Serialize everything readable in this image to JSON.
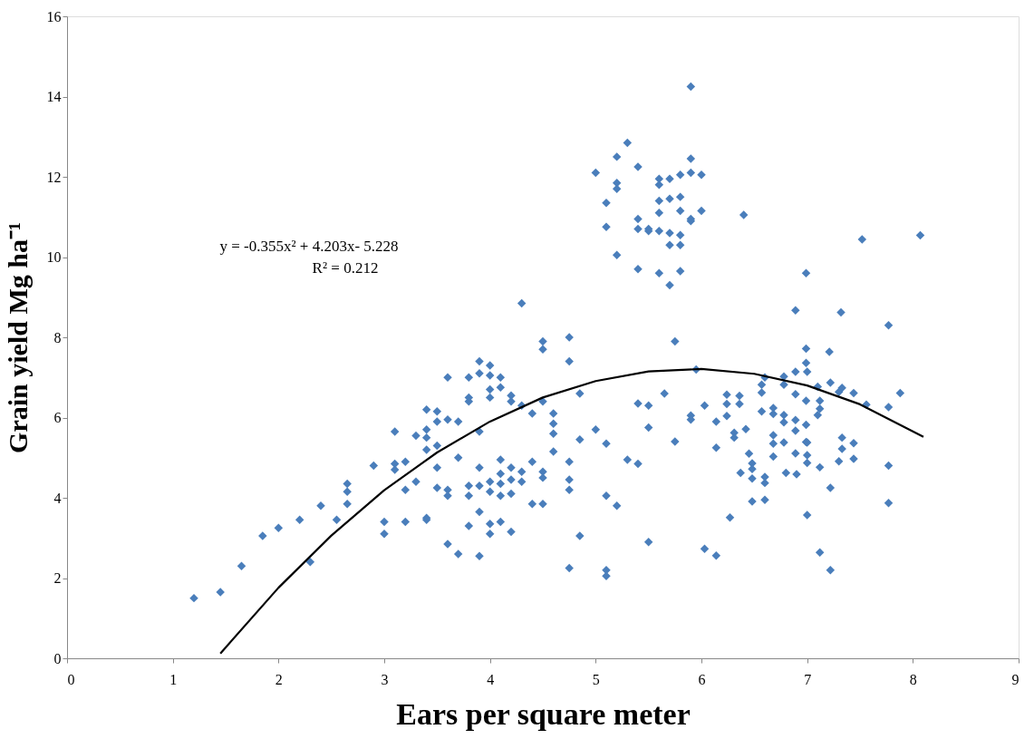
{
  "chart_data": {
    "type": "scatter",
    "xlabel": "Ears per square meter",
    "ylabel": "Grain yield Mg ha⁻¹",
    "annotations": [
      "y = -0.355x² + 4.203x- 5.228",
      "R² = 0.212"
    ],
    "xlim": [
      0,
      9
    ],
    "xticks": [
      0,
      1,
      2,
      3,
      4,
      5,
      6,
      7,
      8,
      9
    ],
    "ylim": [
      0,
      16
    ],
    "yticks": [
      0,
      2,
      4,
      6,
      8,
      10,
      12,
      14,
      16
    ],
    "grid": false,
    "legend": false,
    "series": [
      {
        "marker": "diamond",
        "color": "#4a7ebb",
        "x": [
          1.2,
          1.45,
          1.65,
          1.85,
          2.0,
          2.2,
          2.3,
          2.4,
          2.55,
          2.65,
          2.65,
          2.65,
          2.9,
          3.0,
          3.0,
          3.1,
          3.1,
          3.1,
          3.2,
          3.2,
          3.2,
          3.3,
          3.3,
          3.4,
          3.4,
          3.4,
          3.4,
          3.4,
          3.4,
          3.5,
          3.5,
          3.5,
          3.5,
          3.5,
          3.6,
          3.6,
          3.6,
          3.6,
          3.6,
          3.7,
          3.7,
          3.7,
          3.8,
          3.8,
          3.8,
          3.8,
          3.8,
          3.8,
          3.9,
          3.9,
          3.9,
          3.9,
          3.9,
          3.9,
          3.9,
          4.0,
          4.0,
          4.0,
          4.0,
          4.0,
          4.0,
          4.0,
          4.0,
          4.1,
          4.1,
          4.1,
          4.1,
          4.1,
          4.1,
          4.1,
          4.2,
          4.2,
          4.2,
          4.2,
          4.2,
          4.2,
          4.3,
          4.3,
          4.3,
          4.3,
          4.4,
          4.4,
          4.4,
          4.5,
          4.5,
          4.5,
          4.5,
          4.5,
          4.5,
          4.6,
          4.6,
          4.6,
          4.6,
          4.75,
          4.75,
          4.75,
          4.75,
          4.75,
          4.75,
          4.85,
          4.85,
          4.85,
          5.0,
          5.1,
          5.1,
          5.1,
          5.1,
          5.2,
          5.3,
          5.4,
          5.5,
          5.5,
          5.5,
          5.65,
          5.75,
          5.75,
          5.9,
          5.9,
          5.4,
          5.0,
          5.1,
          5.1,
          5.2,
          5.2,
          5.2,
          5.2,
          5.3,
          5.4,
          5.4,
          5.4,
          5.4,
          5.5,
          5.5,
          5.6,
          5.6,
          5.6,
          5.6,
          5.6,
          5.6,
          5.7,
          5.7,
          5.7,
          5.7,
          5.7,
          5.8,
          5.8,
          5.8,
          5.8,
          5.8,
          5.8,
          5.9,
          5.9,
          5.9,
          5.9,
          5.9,
          6.0,
          6.0,
          5.95,
          6.4,
          7.52,
          8.07,
          6.99,
          6.89,
          7.32,
          7.77,
          6.99,
          7.21,
          6.99,
          7.0,
          6.89,
          6.78,
          6.6,
          6.57,
          6.57,
          6.78,
          6.89,
          6.99,
          7.1,
          7.22,
          7.33,
          7.3,
          7.44,
          7.56,
          7.77,
          7.88,
          7.12,
          7.12,
          7.1,
          6.24,
          6.36,
          6.24,
          6.36,
          6.03,
          6.24,
          6.57,
          6.68,
          6.68,
          6.78,
          6.78,
          6.89,
          6.99,
          6.14,
          6.42,
          6.31,
          6.31,
          6.68,
          6.89,
          6.68,
          6.78,
          6.99,
          7.0,
          7.33,
          7.44,
          6.14,
          6.45,
          6.68,
          6.89,
          7.0,
          7.33,
          6.48,
          6.48,
          7.0,
          7.12,
          7.3,
          7.44,
          7.77,
          6.37,
          6.48,
          6.6,
          6.6,
          6.8,
          6.9,
          7.22,
          6.48,
          6.6,
          7.77,
          6.27,
          7.0,
          6.03,
          6.14,
          7.12,
          7.22
        ],
        "values": [
          1.5,
          1.65,
          2.3,
          3.05,
          3.25,
          3.45,
          2.4,
          3.8,
          3.45,
          3.85,
          4.15,
          4.35,
          4.8,
          3.4,
          3.1,
          5.65,
          4.85,
          4.7,
          4.9,
          4.2,
          3.4,
          4.4,
          5.55,
          6.2,
          5.7,
          5.5,
          5.2,
          3.5,
          3.45,
          6.15,
          5.9,
          5.3,
          4.25,
          4.75,
          7.0,
          5.95,
          4.05,
          4.2,
          2.85,
          5.9,
          5.0,
          2.6,
          7.0,
          6.5,
          6.4,
          4.3,
          4.05,
          3.3,
          7.4,
          7.1,
          5.65,
          4.75,
          4.3,
          3.65,
          2.55,
          7.3,
          7.05,
          6.7,
          6.5,
          4.4,
          4.15,
          3.35,
          3.1,
          7.0,
          6.75,
          4.95,
          4.6,
          4.35,
          4.05,
          3.4,
          6.55,
          6.4,
          4.75,
          4.45,
          4.1,
          3.15,
          8.85,
          6.3,
          4.65,
          4.4,
          6.1,
          4.9,
          3.85,
          7.9,
          7.7,
          6.4,
          4.65,
          4.5,
          3.85,
          6.1,
          5.85,
          5.6,
          5.15,
          8.0,
          7.4,
          4.9,
          4.45,
          4.2,
          2.25,
          6.6,
          5.45,
          3.05,
          5.7,
          5.35,
          4.05,
          2.2,
          2.05,
          3.8,
          4.95,
          6.35,
          6.3,
          5.75,
          2.9,
          6.6,
          7.9,
          5.4,
          6.05,
          5.95,
          4.85,
          12.1,
          11.35,
          10.75,
          12.5,
          11.85,
          11.7,
          10.05,
          12.85,
          12.25,
          10.95,
          10.7,
          9.7,
          10.65,
          10.7,
          11.95,
          11.8,
          11.4,
          11.1,
          10.65,
          9.6,
          11.95,
          11.45,
          10.6,
          10.3,
          9.3,
          12.05,
          11.5,
          11.15,
          10.55,
          10.3,
          9.65,
          12.1,
          10.9,
          10.95,
          12.45,
          14.25,
          12.05,
          11.15,
          7.2,
          11.05,
          10.44,
          10.54,
          9.6,
          8.67,
          8.62,
          8.3,
          7.72,
          7.64,
          7.36,
          7.14,
          7.14,
          7.02,
          7.0,
          6.82,
          6.62,
          6.82,
          6.58,
          6.42,
          6.77,
          6.87,
          6.74,
          6.64,
          6.61,
          6.32,
          6.26,
          6.61,
          6.42,
          6.22,
          6.06,
          6.57,
          6.54,
          6.34,
          6.34,
          6.3,
          6.04,
          6.15,
          6.24,
          6.09,
          6.06,
          5.88,
          5.94,
          5.82,
          5.9,
          5.71,
          5.62,
          5.5,
          5.56,
          5.67,
          5.35,
          5.38,
          5.39,
          5.38,
          5.5,
          5.36,
          5.25,
          5.1,
          5.03,
          5.11,
          5.06,
          5.22,
          4.86,
          4.72,
          4.87,
          4.76,
          4.91,
          4.97,
          4.8,
          4.62,
          4.48,
          4.52,
          4.37,
          4.62,
          4.59,
          4.25,
          3.91,
          3.95,
          3.87,
          3.51,
          3.57,
          2.73,
          2.56,
          2.64,
          2.2
        ]
      },
      {
        "type": "line",
        "marker": "none",
        "line_style": "solid",
        "color": "#000000",
        "x": [
          1.45,
          2.0,
          2.5,
          3.0,
          3.5,
          4.0,
          4.5,
          5.0,
          5.5,
          6.0,
          6.5,
          7.0,
          7.5,
          8.1
        ],
        "values": [
          0.12,
          1.76,
          3.06,
          4.19,
          5.13,
          5.9,
          6.5,
          6.91,
          7.15,
          7.21,
          7.09,
          6.8,
          6.33,
          5.52
        ]
      }
    ]
  }
}
